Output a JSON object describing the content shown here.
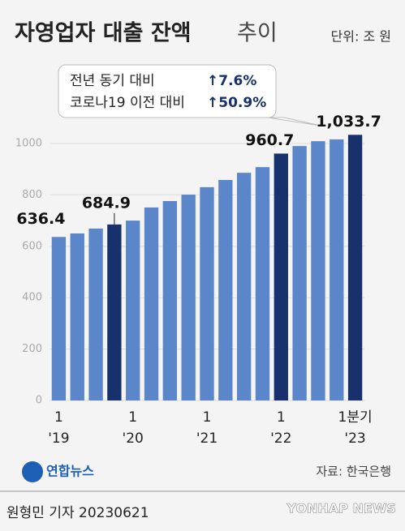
{
  "chart_data": {
    "type": "bar",
    "title": "자영업자 대출 잔액",
    "title_light": "추이",
    "unit": "단위: 조 원",
    "annotation": [
      [
        "전년 동기 대비",
        "↑7.6%"
      ],
      [
        "코로나19 이전 대비",
        "↑50.9%"
      ]
    ],
    "categories": [
      [
        "1",
        "'19"
      ],
      null,
      null,
      null,
      [
        "1",
        "'20"
      ],
      null,
      null,
      null,
      [
        "1",
        "'21"
      ],
      null,
      null,
      null,
      [
        "1",
        "'22"
      ],
      null,
      null,
      null,
      [
        "1분기",
        "'23"
      ]
    ],
    "values": [
      636.4,
      650,
      669,
      684.9,
      700,
      751,
      776,
      801,
      830,
      858,
      886,
      908,
      960.7,
      990,
      1009,
      1016,
      1033.7
    ],
    "value_labels": [
      "636.4",
      null,
      null,
      "684.9",
      null,
      null,
      null,
      null,
      null,
      null,
      null,
      null,
      "960.7",
      null,
      null,
      null,
      "1,033.7"
    ],
    "colors": [
      "#5b86c9",
      "#5b86c9",
      "#5b86c9",
      "#17316c",
      "#5b86c9",
      "#5b86c9",
      "#5b86c9",
      "#5b86c9",
      "#5b86c9",
      "#5b86c9",
      "#5b86c9",
      "#5b86c9",
      "#17316c",
      "#5b86c9",
      "#5b86c9",
      "#5b86c9",
      "#17316c"
    ],
    "ylim": [
      0,
      1100
    ],
    "yticks": [
      0,
      200,
      400,
      600,
      800,
      1000
    ],
    "grid": true
  },
  "footer": {
    "logo": "연합뉴스",
    "source": "자료: 한국은행",
    "byline": "원형민 기자  20230621",
    "watermark": "YONHAP NEWS"
  }
}
